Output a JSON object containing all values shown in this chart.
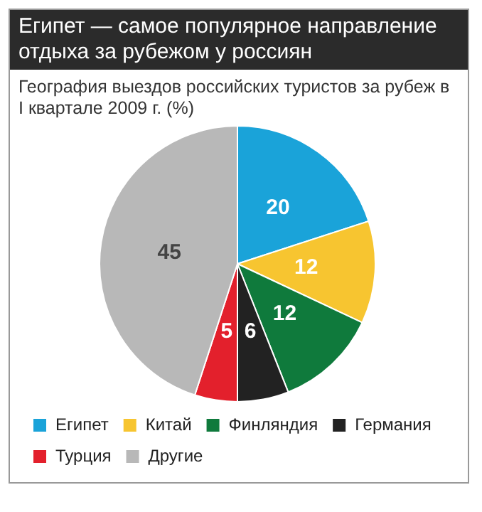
{
  "chart_data": {
    "type": "pie",
    "title": "Египет — самое популярное направление отдыха за рубежом у россиян",
    "subtitle": "География выездов российских туристов за рубеж в I квартале 2009 г. (%)",
    "categories": [
      "Египет",
      "Китай",
      "Финляндия",
      "Германия",
      "Турция",
      "Другие"
    ],
    "values": [
      20,
      12,
      12,
      6,
      5,
      45
    ],
    "colors": [
      "#1aa3d9",
      "#f7c530",
      "#0f7a3c",
      "#222222",
      "#e3202c",
      "#b8b8b8"
    ],
    "data_labels": true,
    "legend": "bottom"
  }
}
